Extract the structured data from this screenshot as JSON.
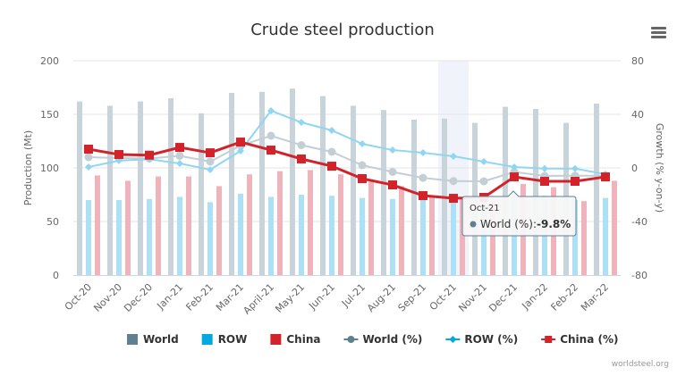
{
  "menu": {
    "icon": "hamburger-menu-icon"
  },
  "credit": "worldsteel.org",
  "tooltip": {
    "category": "Oct-21",
    "series": "World (%)",
    "label": "World (%): ",
    "value": "-9.8%"
  },
  "chart_data": {
    "type": "bar",
    "title": "Crude steel production",
    "xlabel": "",
    "ylabel": "Production (Mt)",
    "y2label": "Growth (% y-on-y)",
    "ylim": [
      0,
      200
    ],
    "y2lim": [
      -80,
      80
    ],
    "yticks": [
      0,
      50,
      100,
      150,
      200
    ],
    "y2ticks": [
      -80,
      -40,
      0,
      40,
      80
    ],
    "grid": true,
    "legend_position": "bottom",
    "highlighted_category": "Oct-21",
    "categories": [
      "Oct-20",
      "Nov-20",
      "Dec-20",
      "Jan-21",
      "Feb-21",
      "Mar-21",
      "April-21",
      "May-21",
      "Jun-21",
      "Jul-21",
      "Aug-21",
      "Sep-21",
      "Oct-21",
      "Nov-21",
      "Dec-21",
      "Jan-22",
      "Feb-22",
      "Mar-22"
    ],
    "series": [
      {
        "name": "World",
        "kind": "bar",
        "axis": "left",
        "color": "#c8d3da",
        "legend_color": "#5f7f93",
        "values": [
          162,
          158,
          162,
          165,
          151,
          170,
          171,
          174,
          167,
          158,
          154,
          145,
          146,
          142,
          157,
          155,
          142,
          160
        ]
      },
      {
        "name": "ROW",
        "kind": "bar",
        "axis": "left",
        "color": "#ade0f4",
        "legend_color": "#00a9e0",
        "values": [
          70,
          70,
          71,
          73,
          68,
          76,
          73,
          75,
          74,
          72,
          71,
          72,
          72,
          71,
          75,
          74,
          70,
          72
        ]
      },
      {
        "name": "China",
        "kind": "bar",
        "axis": "left",
        "color": "#efb4bb",
        "legend_color": "#d2232a",
        "values": [
          93,
          88,
          92,
          92,
          83,
          94,
          97,
          98,
          94,
          87,
          83,
          74,
          72,
          69,
          85,
          82,
          69,
          88
        ]
      },
      {
        "name": "World (%)",
        "kind": "line",
        "axis": "right",
        "color": "#c4ced5",
        "legend_color": "#5f7f93",
        "marker": "circle",
        "values": [
          8,
          7.3,
          7,
          9,
          4.7,
          16.7,
          24,
          17,
          12,
          2,
          -3,
          -7.4,
          -9.8,
          -10,
          -3,
          -6,
          -5.8,
          -5.8
        ]
      },
      {
        "name": "ROW (%)",
        "kind": "line",
        "axis": "right",
        "color": "#8fd6f2",
        "legend_color": "#00a9e0",
        "marker": "diamond",
        "values": [
          0.7,
          5.4,
          6.5,
          3.3,
          -1.3,
          12.7,
          42.7,
          34,
          28,
          18,
          13.3,
          11.3,
          8.7,
          4.7,
          0.7,
          -0.5,
          -0.5,
          -4.7
        ]
      },
      {
        "name": "China (%)",
        "kind": "line",
        "axis": "right",
        "color": "#d2232a",
        "legend_color": "#d2232a",
        "marker": "square",
        "values": [
          14,
          10,
          9.5,
          15.3,
          11.3,
          19.3,
          13.3,
          6.7,
          1.3,
          -8,
          -12.7,
          -20.7,
          -22.7,
          -22,
          -6.7,
          -10,
          -10,
          -6.7
        ]
      }
    ]
  }
}
